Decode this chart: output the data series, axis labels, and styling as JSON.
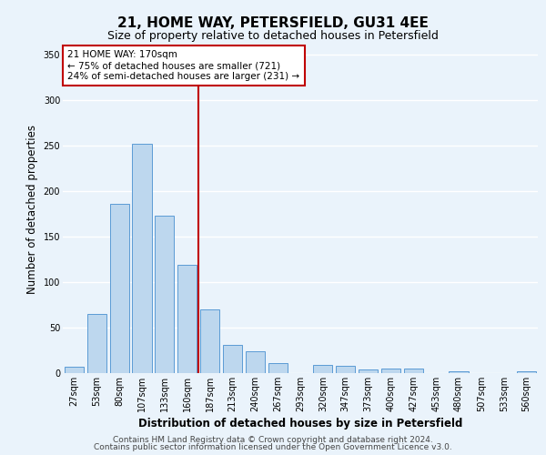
{
  "title": "21, HOME WAY, PETERSFIELD, GU31 4EE",
  "subtitle": "Size of property relative to detached houses in Petersfield",
  "xlabel": "Distribution of detached houses by size in Petersfield",
  "ylabel": "Number of detached properties",
  "bar_labels": [
    "27sqm",
    "53sqm",
    "80sqm",
    "107sqm",
    "133sqm",
    "160sqm",
    "187sqm",
    "213sqm",
    "240sqm",
    "267sqm",
    "293sqm",
    "320sqm",
    "347sqm",
    "373sqm",
    "400sqm",
    "427sqm",
    "453sqm",
    "480sqm",
    "507sqm",
    "533sqm",
    "560sqm"
  ],
  "bar_values": [
    7,
    65,
    186,
    252,
    173,
    119,
    70,
    31,
    24,
    11,
    0,
    9,
    8,
    4,
    5,
    5,
    0,
    2,
    0,
    0,
    2
  ],
  "bar_color": "#bdd7ee",
  "bar_edge_color": "#5b9bd5",
  "vline_x": 5.5,
  "vline_color": "#c00000",
  "annotation_title": "21 HOME WAY: 170sqm",
  "annotation_line1": "← 75% of detached houses are smaller (721)",
  "annotation_line2": "24% of semi-detached houses are larger (231) →",
  "annotation_box_color": "#c00000",
  "ylim": [
    0,
    360
  ],
  "yticks": [
    0,
    50,
    100,
    150,
    200,
    250,
    300,
    350
  ],
  "footer1": "Contains HM Land Registry data © Crown copyright and database right 2024.",
  "footer2": "Contains public sector information licensed under the Open Government Licence v3.0.",
  "bg_color": "#eaf3fb",
  "plot_bg_color": "#eaf3fb",
  "grid_color": "#ffffff",
  "title_fontsize": 11,
  "subtitle_fontsize": 9,
  "axis_label_fontsize": 8.5,
  "tick_fontsize": 7,
  "annotation_fontsize": 7.5,
  "footer_fontsize": 6.5
}
